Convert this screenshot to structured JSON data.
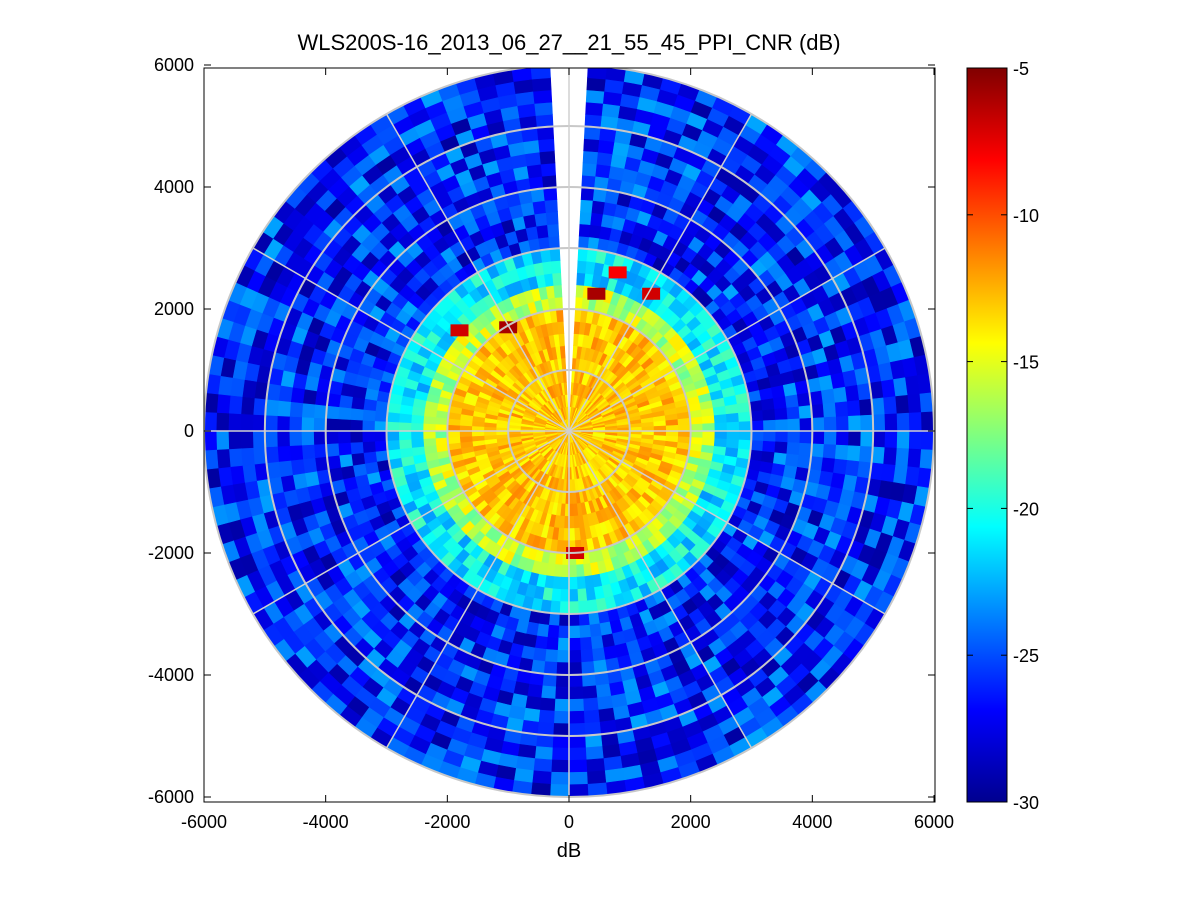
{
  "chart_data": {
    "type": "heatmap",
    "subtype": "polar-ppi",
    "title": "WLS200S-16_2013_06_27__21_55_45_PPI_CNR (dB)",
    "xlabel": "dB",
    "ylabel": "",
    "xlim": [
      -6000,
      6000
    ],
    "ylim": [
      -6000,
      6000
    ],
    "xticks": [
      -6000,
      -4000,
      -2000,
      0,
      2000,
      4000,
      6000
    ],
    "yticks": [
      6000,
      4000,
      2000,
      0,
      -2000,
      -4000,
      -6000
    ],
    "xtick_labels": [
      "-6000",
      "-4000",
      "-2000",
      "0",
      "2000",
      "4000",
      "6000"
    ],
    "ytick_labels": [
      "6000",
      "4000",
      "2000",
      "0",
      "-2000",
      "-4000",
      "-6000"
    ],
    "polar_grid": {
      "rings_m": [
        1000,
        2000,
        3000,
        4000,
        5000,
        6000
      ],
      "spokes_deg": [
        0,
        30,
        60,
        90,
        120,
        150,
        180,
        210,
        240,
        270,
        300,
        330
      ]
    },
    "max_range_m": 6000,
    "blocked_sector_deg": [
      -4,
      4
    ],
    "colorbar": {
      "range": [
        -30,
        -5
      ],
      "colormap": "jet",
      "ticks": [
        -5,
        -10,
        -15,
        -20,
        -25,
        -30
      ],
      "tick_labels": [
        "-5",
        "-10",
        "-15",
        "-20",
        "-25",
        "-30"
      ]
    },
    "zones": [
      {
        "r_range_m": [
          0,
          2000
        ],
        "cnr_db": -13
      },
      {
        "r_range_m": [
          2000,
          2500
        ],
        "cnr_db": -16
      },
      {
        "r_range_m": [
          2500,
          3000
        ],
        "cnr_db": -21
      },
      {
        "r_range_m": [
          3000,
          6000
        ],
        "cnr_db": -26
      }
    ],
    "hotspots": [
      {
        "x": 450,
        "y": 2250,
        "cnr_db": -6
      },
      {
        "x": 800,
        "y": 2600,
        "cnr_db": -8
      },
      {
        "x": -1800,
        "y": 1650,
        "cnr_db": -7
      },
      {
        "x": -1000,
        "y": 1700,
        "cnr_db": -6
      },
      {
        "x": 100,
        "y": -2000,
        "cnr_db": -7
      },
      {
        "x": 1350,
        "y": 2250,
        "cnr_db": -7
      }
    ]
  }
}
